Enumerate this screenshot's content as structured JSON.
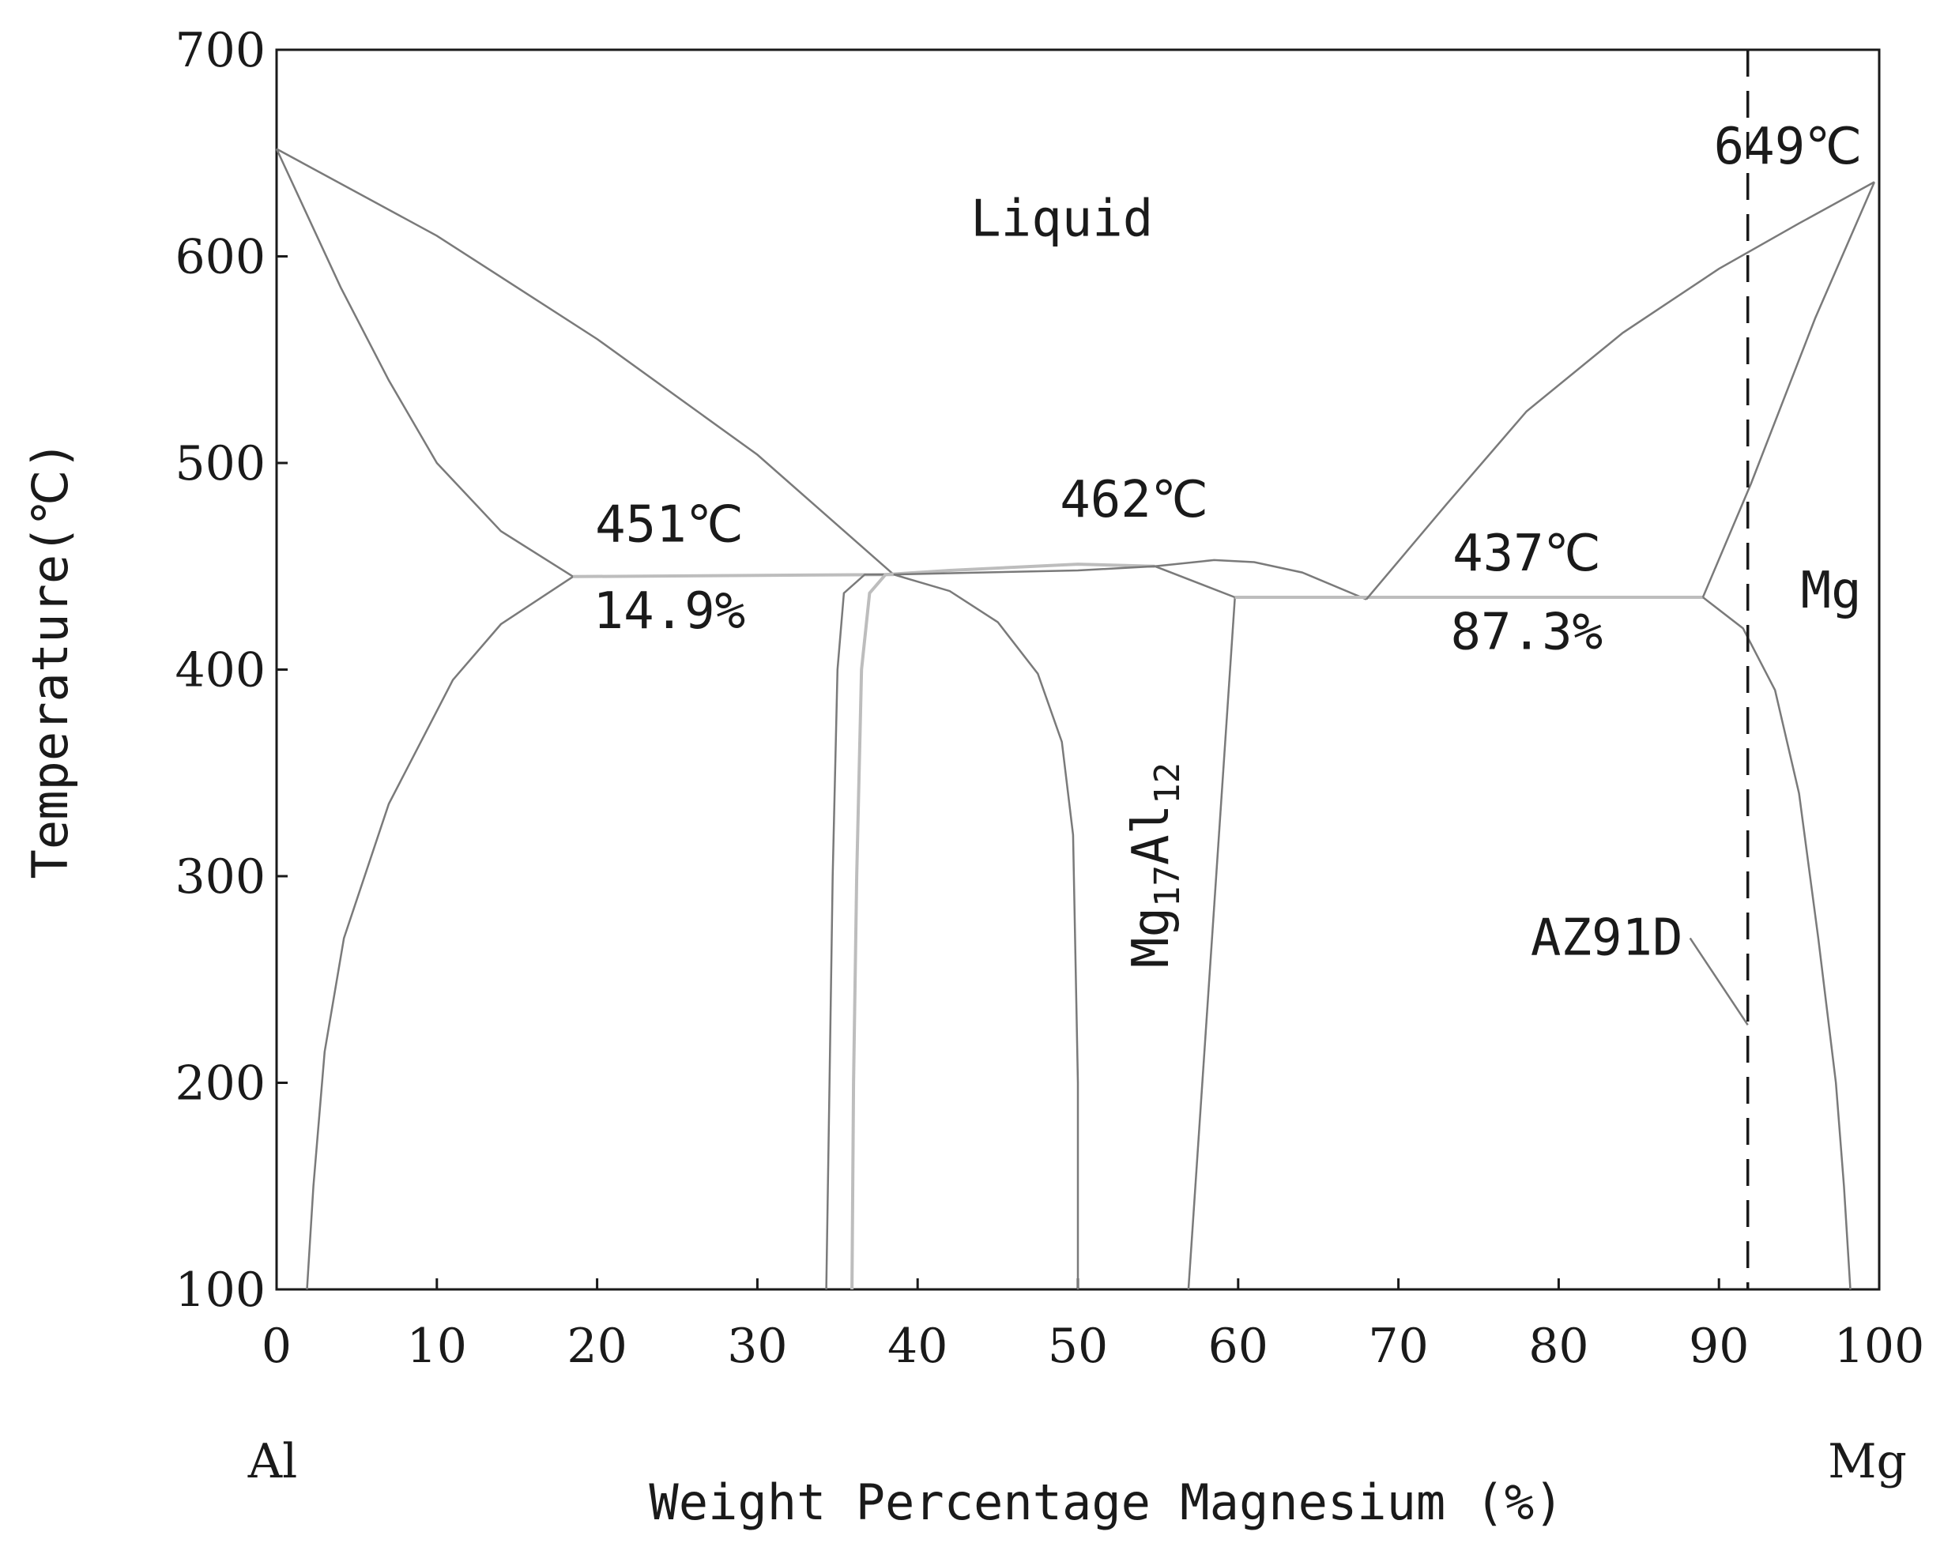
{
  "chart_data": {
    "type": "line",
    "title": "",
    "xlabel": "Weight Percentage Magnesium (%)",
    "ylabel": "Temperature(℃)",
    "xlim": [
      0,
      100
    ],
    "ylim": [
      100,
      700
    ],
    "x_ticks": [
      "0",
      "10",
      "20",
      "30",
      "40",
      "50",
      "60",
      "70",
      "80",
      "90",
      "100"
    ],
    "y_ticks": [
      "100",
      "200",
      "300",
      "400",
      "500",
      "600",
      "700"
    ],
    "x_end_labels": {
      "left": "Al",
      "right": "Mg"
    },
    "grid": false,
    "legend": "none",
    "series": [
      {
        "points": [
          [
            0,
            652
          ],
          [
            4,
            585
          ],
          [
            7,
            540
          ],
          [
            10,
            500
          ],
          [
            14,
            467
          ],
          [
            18.5,
            445
          ]
        ]
      },
      {
        "points": [
          [
            0,
            652
          ],
          [
            10,
            610
          ],
          [
            20,
            560
          ],
          [
            30,
            504
          ],
          [
            38.5,
            446
          ]
        ]
      },
      {
        "points": [
          [
            1.9,
            100
          ],
          [
            2.3,
            150
          ],
          [
            3,
            215
          ],
          [
            4.2,
            270
          ],
          [
            7,
            335
          ],
          [
            11,
            395
          ],
          [
            14,
            422
          ],
          [
            18.5,
            445
          ]
        ]
      },
      {
        "points": [
          [
            18.5,
            445
          ],
          [
            38.5,
            446
          ]
        ],
        "style": "light"
      },
      {
        "points": [
          [
            34.3,
            100
          ],
          [
            34.5,
            200
          ],
          [
            34.7,
            300
          ],
          [
            35,
            400
          ],
          [
            35.4,
            437
          ],
          [
            36.7,
            446
          ],
          [
            38.5,
            446
          ]
        ]
      },
      {
        "points": [
          [
            35.9,
            100
          ],
          [
            36,
            200
          ],
          [
            36.2,
            300
          ],
          [
            36.5,
            400
          ],
          [
            37,
            437
          ],
          [
            38,
            446
          ],
          [
            42,
            448
          ],
          [
            50,
            451
          ],
          [
            54.8,
            450
          ]
        ],
        "style": "light"
      },
      {
        "points": [
          [
            38.5,
            446
          ],
          [
            42,
            438
          ],
          [
            45,
            423
          ],
          [
            47.5,
            398
          ],
          [
            49,
            365
          ],
          [
            49.7,
            320
          ],
          [
            50,
            200
          ],
          [
            50,
            100
          ]
        ]
      },
      {
        "points": [
          [
            38.5,
            446
          ],
          [
            44,
            447
          ],
          [
            50,
            448
          ],
          [
            54.8,
            450
          ],
          [
            59.8,
            435
          ]
        ]
      },
      {
        "points": [
          [
            54.8,
            450
          ],
          [
            58.5,
            453
          ],
          [
            61,
            452
          ],
          [
            64,
            447
          ],
          [
            68,
            434
          ]
        ]
      },
      {
        "points": [
          [
            56.9,
            100
          ],
          [
            59.8,
            435
          ]
        ]
      },
      {
        "points": [
          [
            59.8,
            435
          ],
          [
            68,
            435
          ],
          [
            89,
            435
          ]
        ],
        "style": "light"
      },
      {
        "points": [
          [
            68,
            434
          ],
          [
            73,
            480
          ],
          [
            78,
            525
          ],
          [
            84,
            563
          ],
          [
            90,
            594
          ],
          [
            95,
            616
          ],
          [
            99.7,
            636
          ]
        ]
      },
      {
        "points": [
          [
            89,
            435
          ],
          [
            92,
            490
          ],
          [
            96,
            570
          ],
          [
            99.7,
            636
          ]
        ]
      },
      {
        "points": [
          [
            89,
            435
          ],
          [
            91.5,
            420
          ],
          [
            93.5,
            390
          ],
          [
            95,
            340
          ],
          [
            96.2,
            270
          ],
          [
            97.3,
            200
          ],
          [
            97.8,
            150
          ],
          [
            98.2,
            100
          ]
        ]
      }
    ],
    "composition_marker": {
      "name": "AZ91D",
      "x": 91.8,
      "style": "dashed",
      "leader_to": [
        91.8,
        228
      ]
    },
    "annotations": [
      {
        "text": "Liquid",
        "x": 49,
        "y": 610
      },
      {
        "text": "451℃",
        "x": 24.5,
        "y": 462
      },
      {
        "text": "14.9%",
        "x": 24.5,
        "y": 420
      },
      {
        "text": "462℃",
        "x": 53.5,
        "y": 474
      },
      {
        "text": "437℃",
        "x": 78,
        "y": 448
      },
      {
        "text": "87.3%",
        "x": 78,
        "y": 410
      },
      {
        "text": "649℃",
        "x": 94.3,
        "y": 645
      },
      {
        "text": "Mg",
        "x": 97,
        "y": 430
      },
      {
        "text": "AZ91D",
        "x": 83,
        "y": 262
      }
    ],
    "phase_label": {
      "base": "Mg",
      "sub1": "17",
      "mid": "Al",
      "sub2": "12",
      "x": 55.8,
      "y": 340
    }
  }
}
